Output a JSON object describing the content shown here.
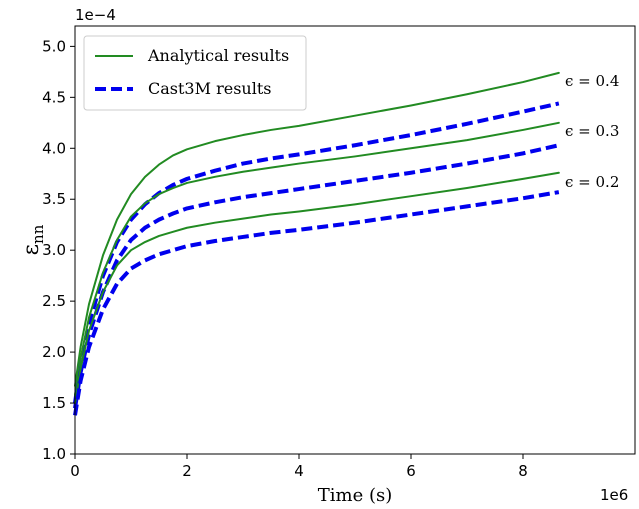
{
  "chart_data": {
    "type": "line",
    "xlabel": "Time (s)",
    "ylabel_main": "ε",
    "ylabel_sub": "nn",
    "x_multiplier": "1e6",
    "y_multiplier": "1e−4",
    "xlim": [
      0,
      10
    ],
    "ylim": [
      1.0,
      5.2
    ],
    "x_ticks": [
      0,
      2,
      4,
      6,
      8
    ],
    "y_ticks": [
      1.0,
      1.5,
      2.0,
      2.5,
      3.0,
      3.5,
      4.0,
      4.5,
      5.0
    ],
    "x_tick_labels": [
      "0",
      "2",
      "4",
      "6",
      "8"
    ],
    "y_tick_labels": [
      "1.0",
      "1.5",
      "2.0",
      "2.5",
      "3.0",
      "3.5",
      "4.0",
      "4.5",
      "5.0"
    ],
    "x": [
      0,
      0.1,
      0.25,
      0.5,
      0.75,
      1.0,
      1.25,
      1.5,
      1.75,
      2.0,
      2.5,
      3.0,
      3.5,
      4.0,
      5.0,
      6.0,
      7.0,
      8.0,
      8.64
    ],
    "series": [
      {
        "name": "Analytical results",
        "group": "analytical",
        "epsilon": "0.4",
        "color": "#228b22",
        "dashed": false,
        "values": [
          1.67,
          2.05,
          2.47,
          2.95,
          3.3,
          3.55,
          3.72,
          3.84,
          3.93,
          3.99,
          4.07,
          4.13,
          4.18,
          4.22,
          4.32,
          4.42,
          4.53,
          4.65,
          4.74
        ]
      },
      {
        "name": "Cast3M results",
        "group": "cast3m",
        "epsilon": "0.4",
        "color": "#0000ee",
        "dashed": true,
        "values": [
          1.5,
          1.88,
          2.28,
          2.75,
          3.08,
          3.3,
          3.45,
          3.56,
          3.64,
          3.7,
          3.78,
          3.85,
          3.9,
          3.94,
          4.03,
          4.13,
          4.24,
          4.36,
          4.44
        ]
      },
      {
        "name": "Analytical results",
        "group": "analytical",
        "epsilon": "0.3",
        "color": "#228b22",
        "dashed": false,
        "values": [
          1.58,
          1.94,
          2.34,
          2.78,
          3.1,
          3.33,
          3.46,
          3.55,
          3.61,
          3.66,
          3.72,
          3.77,
          3.81,
          3.85,
          3.92,
          4.0,
          4.08,
          4.18,
          4.25
        ]
      },
      {
        "name": "Cast3M results",
        "group": "cast3m",
        "epsilon": "0.3",
        "color": "#0000ee",
        "dashed": true,
        "values": [
          1.45,
          1.8,
          2.17,
          2.59,
          2.9,
          3.1,
          3.22,
          3.3,
          3.36,
          3.41,
          3.47,
          3.52,
          3.56,
          3.6,
          3.68,
          3.76,
          3.85,
          3.95,
          4.03
        ]
      },
      {
        "name": "Analytical results",
        "group": "analytical",
        "epsilon": "0.2",
        "color": "#228b22",
        "dashed": false,
        "values": [
          1.5,
          1.84,
          2.21,
          2.59,
          2.85,
          3.0,
          3.08,
          3.14,
          3.18,
          3.22,
          3.27,
          3.31,
          3.35,
          3.38,
          3.45,
          3.53,
          3.61,
          3.7,
          3.76
        ]
      },
      {
        "name": "Cast3M results",
        "group": "cast3m",
        "epsilon": "0.2",
        "color": "#0000ee",
        "dashed": true,
        "values": [
          1.38,
          1.72,
          2.05,
          2.42,
          2.67,
          2.82,
          2.9,
          2.96,
          3.0,
          3.04,
          3.09,
          3.13,
          3.17,
          3.2,
          3.27,
          3.35,
          3.43,
          3.51,
          3.57
        ]
      }
    ],
    "legend": {
      "placement": "top-left",
      "entries": [
        {
          "label": "Analytical results",
          "color": "#228b22",
          "dashed": false
        },
        {
          "label": "Cast3M results",
          "color": "#0000ee",
          "dashed": true
        }
      ]
    },
    "annotations": [
      {
        "text": "ϵ = 0.4",
        "x": 8.75,
        "y": 4.61
      },
      {
        "text": "ϵ = 0.3",
        "x": 8.75,
        "y": 4.12
      },
      {
        "text": "ϵ = 0.2",
        "x": 8.75,
        "y": 3.62
      }
    ],
    "grid": false
  }
}
